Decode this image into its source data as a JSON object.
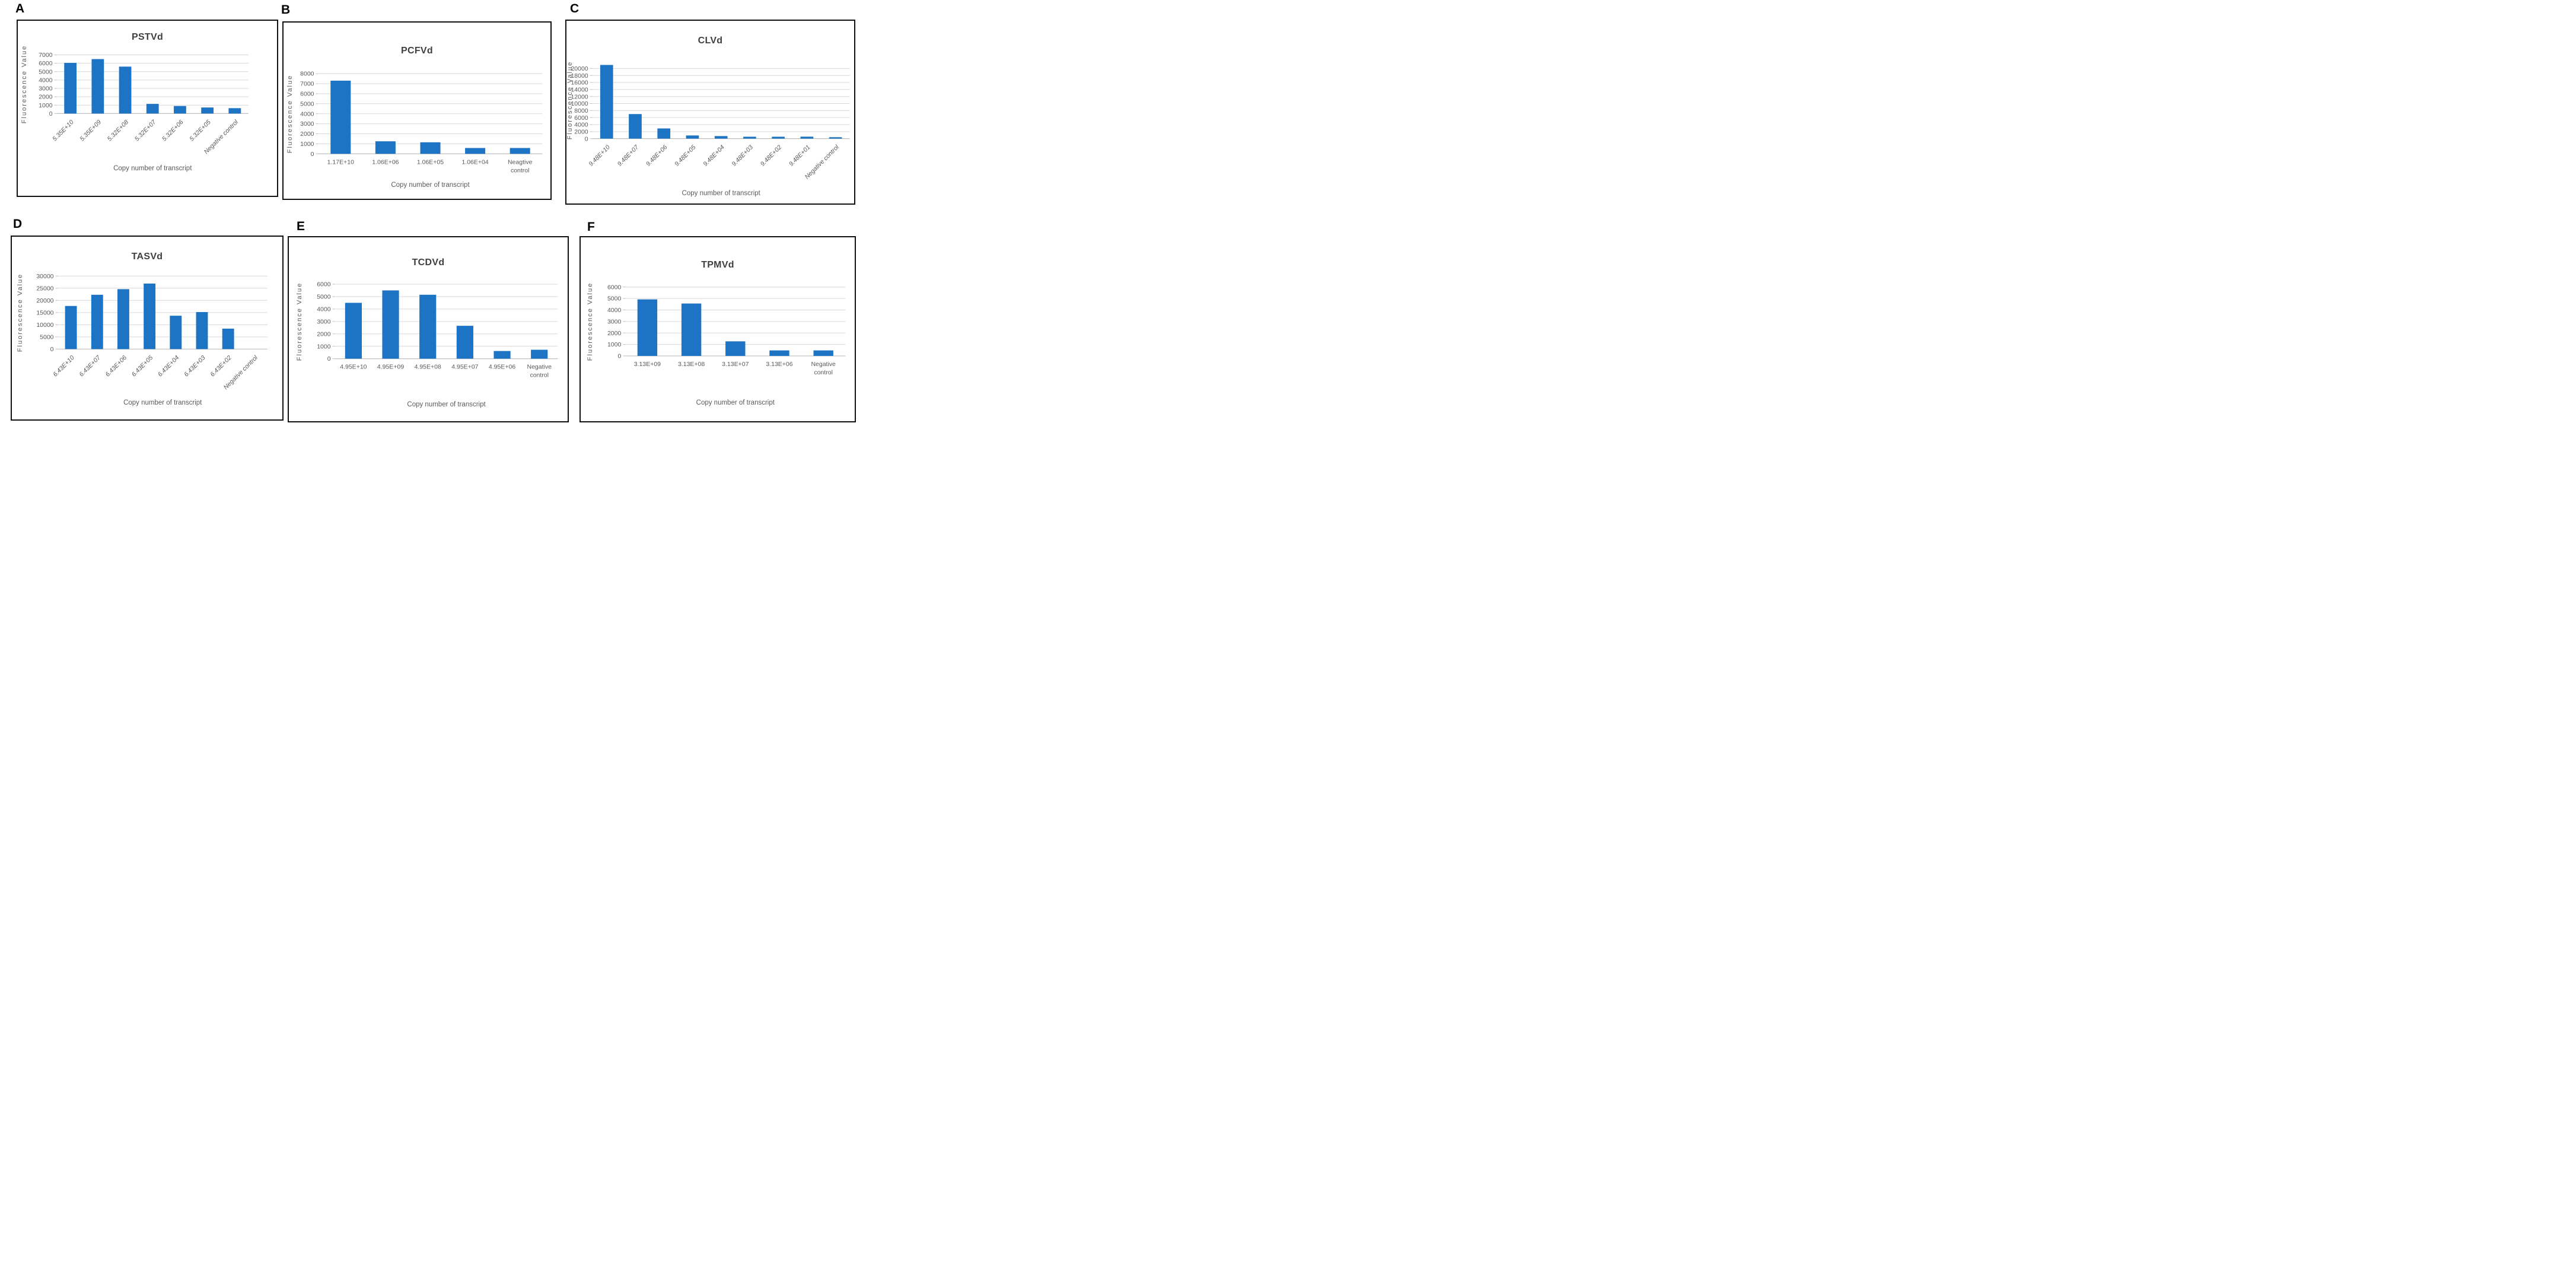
{
  "figure": {
    "description": "Six-panel bar chart figure of viroid RPA-LFD fluorescence assays",
    "background": "#ffffff"
  },
  "colors": {
    "bar": "#1d74c5",
    "gridline": "#d9d9d9",
    "axis_line": "#bfbfbf",
    "tick_text": "#595959",
    "title_text": "#3f3f3f",
    "panel_letter": "#000000",
    "panel_border": "#111111"
  },
  "panels": [
    {
      "id": "a",
      "letter": "A",
      "chart_data": {
        "type": "bar",
        "title": "PSTVd",
        "xlabel": "Copy number of transcript",
        "ylabel": "Fluorescence Value",
        "categories": [
          "5.35E+10",
          "5.35E+09",
          "5.32E+08",
          "5.32E+07",
          "5.32E+06",
          "5.32E+05",
          "Negative control"
        ],
        "values": [
          6050,
          6500,
          5600,
          1150,
          900,
          720,
          640
        ],
        "ylim": [
          0,
          7000
        ],
        "ytick_step": 1000,
        "grid": true,
        "legend_position": "none",
        "xtick_style": "rotated-italic"
      }
    },
    {
      "id": "b",
      "letter": "B",
      "chart_data": {
        "type": "bar",
        "title": "PCFVd",
        "xlabel": "Copy number of transcript",
        "ylabel": "Fluorescence Value",
        "categories": [
          "1.17E+10",
          "1.06E+06",
          "1.06E+05",
          "1.06E+04",
          "Neagtive control"
        ],
        "values": [
          7300,
          1250,
          1150,
          580,
          580
        ],
        "ylim": [
          0,
          8000
        ],
        "ytick_step": 1000,
        "grid": true,
        "legend_position": "none",
        "xtick_style": "horizontal"
      }
    },
    {
      "id": "c",
      "letter": "C",
      "chart_data": {
        "type": "bar",
        "title": "CLVd",
        "xlabel": "Copy number of transcript",
        "ylabel": "Fluorescence Value",
        "categories": [
          "9.48E+10",
          "9.48E+07",
          "9.48E+06",
          "9.48E+05",
          "9.48E+04",
          "9.48E+03",
          "9.48E+02",
          "9.48E+01",
          "Negative control"
        ],
        "values": [
          21000,
          7000,
          2900,
          900,
          730,
          540,
          540,
          560,
          400
        ],
        "ylim": [
          0,
          20000
        ],
        "ytick_step": 2000,
        "grid": true,
        "legend_position": "none",
        "xtick_style": "rotated-italic"
      }
    },
    {
      "id": "d",
      "letter": "D",
      "chart_data": {
        "type": "bar",
        "title": "TASVd",
        "xlabel": "Copy number of transcript",
        "ylabel": "Fluorescence Value",
        "categories": [
          "6.43E+10",
          "6.43E+07",
          "6.43E+06",
          "6.43E+05",
          "6.43E+04",
          "6.43E+03",
          "6.43E+02",
          "Negative control"
        ],
        "values": [
          17700,
          22300,
          24600,
          26900,
          13700,
          15200,
          8400,
          0
        ],
        "ylim": [
          0,
          30000
        ],
        "ytick_step": 5000,
        "grid": true,
        "legend_position": "none",
        "xtick_style": "rotated-italic"
      }
    },
    {
      "id": "e",
      "letter": "E",
      "chart_data": {
        "type": "bar",
        "title": "TCDVd",
        "xlabel": "Copy number of transcript",
        "ylabel": "Fluorescence Value",
        "categories": [
          "4.95E+10",
          "4.95E+09",
          "4.95E+08",
          "4.95E+07",
          "4.95E+06",
          "Negative control"
        ],
        "values": [
          4500,
          5500,
          5150,
          2650,
          620,
          720
        ],
        "ylim": [
          0,
          6000
        ],
        "ytick_step": 1000,
        "grid": true,
        "legend_position": "none",
        "xtick_style": "horizontal"
      }
    },
    {
      "id": "f",
      "letter": "F",
      "chart_data": {
        "type": "bar",
        "title": "TPMVd",
        "xlabel": "Copy number of transcript",
        "ylabel": "Fluorescence Value",
        "categories": [
          "3.13E+09",
          "3.13E+08",
          "3.13E+07",
          "3.13E+06",
          "Negative control"
        ],
        "values": [
          4920,
          4560,
          1270,
          480,
          480
        ],
        "ylim": [
          0,
          6000
        ],
        "ytick_step": 1000,
        "grid": true,
        "legend_position": "none",
        "xtick_style": "horizontal"
      }
    }
  ]
}
